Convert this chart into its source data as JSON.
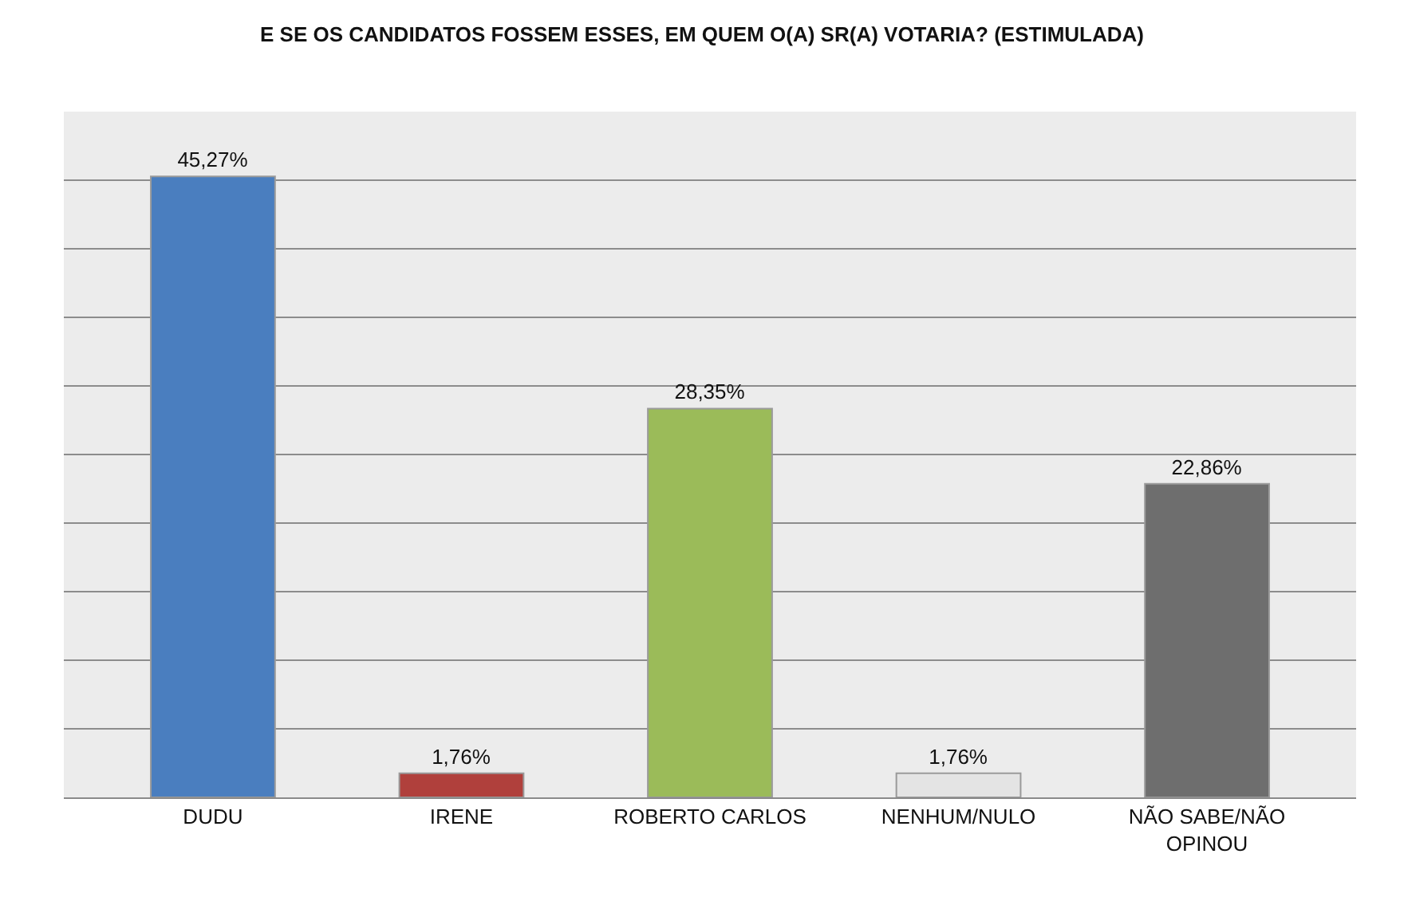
{
  "chart_data": {
    "type": "bar",
    "title": "E SE OS CANDIDATOS FOSSEM ESSES, EM QUEM O(A) SR(A) VOTARIA? (ESTIMULADA)",
    "categories": [
      "DUDU",
      "IRENE",
      "ROBERTO CARLOS",
      "NENHUM/NULO",
      "NÃO SABE/NÃO OPINOU"
    ],
    "values": [
      45.27,
      1.76,
      28.35,
      1.76,
      22.86
    ],
    "value_labels": [
      "45,27%",
      "1,76%",
      "28,35%",
      "1,76%",
      "22,86%"
    ],
    "colors": [
      "#4a7ebf",
      "#b0403c",
      "#9bbb59",
      "#e4e4e4",
      "#6e6e6e"
    ],
    "ylim": [
      0,
      50
    ],
    "yticks": [
      {
        "value": 0,
        "label": null
      },
      {
        "value": 5,
        "label": null
      },
      {
        "value": 10,
        "label": null
      },
      {
        "value": 15,
        "label": null
      },
      {
        "value": 20,
        "label": null
      },
      {
        "value": 25,
        "label": null
      },
      {
        "value": 30,
        "label": null
      },
      {
        "value": 35,
        "label": null
      },
      {
        "value": 40,
        "label": null
      },
      {
        "value": 45,
        "label": null
      },
      {
        "value": 50,
        "label": null
      }
    ],
    "grid": "y",
    "tick_labels": "x"
  }
}
